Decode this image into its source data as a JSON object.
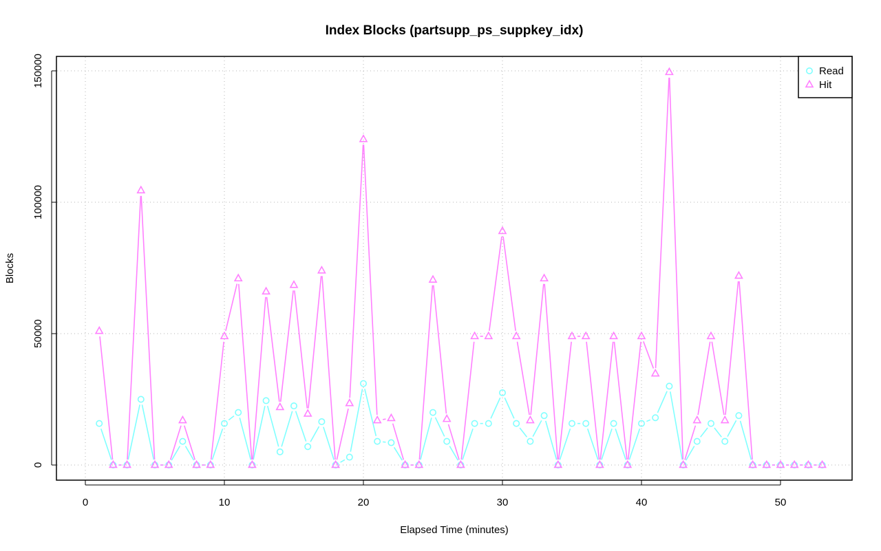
{
  "chart_data": {
    "type": "line",
    "title": "Index Blocks (partsupp_ps_suppkey_idx)",
    "xlabel": "Elapsed Time (minutes)",
    "ylabel": "Blocks",
    "xlim": [
      0,
      55
    ],
    "ylim": [
      0,
      150000
    ],
    "xticks": [
      0,
      10,
      20,
      30,
      40,
      50
    ],
    "yticks": [
      0,
      50000,
      100000,
      150000
    ],
    "grid": true,
    "legend": {
      "position": "top-right",
      "entries": [
        "Read",
        "Hit"
      ]
    },
    "x": [
      1,
      2,
      3,
      4,
      5,
      6,
      7,
      8,
      9,
      10,
      11,
      12,
      13,
      14,
      15,
      16,
      17,
      18,
      19,
      20,
      21,
      22,
      23,
      24,
      25,
      26,
      27,
      28,
      29,
      30,
      31,
      32,
      33,
      34,
      35,
      36,
      37,
      38,
      39,
      40,
      41,
      42,
      43,
      44,
      45,
      46,
      47,
      48,
      49,
      50,
      51,
      52,
      53
    ],
    "series": [
      {
        "name": "Read",
        "color": "#80ffff",
        "marker": "circle",
        "values": [
          15800,
          0,
          0,
          25000,
          0,
          0,
          9000,
          0,
          0,
          15800,
          20000,
          0,
          24500,
          5000,
          22500,
          7000,
          16500,
          0,
          3000,
          31000,
          9000,
          8500,
          0,
          0,
          20000,
          9000,
          0,
          15800,
          15800,
          27500,
          15800,
          9000,
          18800,
          0,
          15800,
          15800,
          0,
          15800,
          0,
          15800,
          18000,
          30000,
          0,
          9000,
          15800,
          9000,
          18800,
          0,
          0,
          0,
          0,
          0,
          0
        ]
      },
      {
        "name": "Hit",
        "color": "#ff80ff",
        "marker": "triangle",
        "values": [
          51000,
          0,
          0,
          104500,
          0,
          0,
          17000,
          0,
          0,
          49000,
          71000,
          0,
          66000,
          22000,
          68500,
          19500,
          74000,
          0,
          23500,
          124000,
          17000,
          17800,
          0,
          0,
          70500,
          17500,
          0,
          49000,
          49000,
          89000,
          49000,
          17000,
          71000,
          0,
          49000,
          49000,
          0,
          49000,
          0,
          49000,
          34800,
          149500,
          0,
          17000,
          49000,
          17000,
          72000,
          0,
          0,
          0,
          0,
          0,
          0
        ]
      }
    ]
  }
}
